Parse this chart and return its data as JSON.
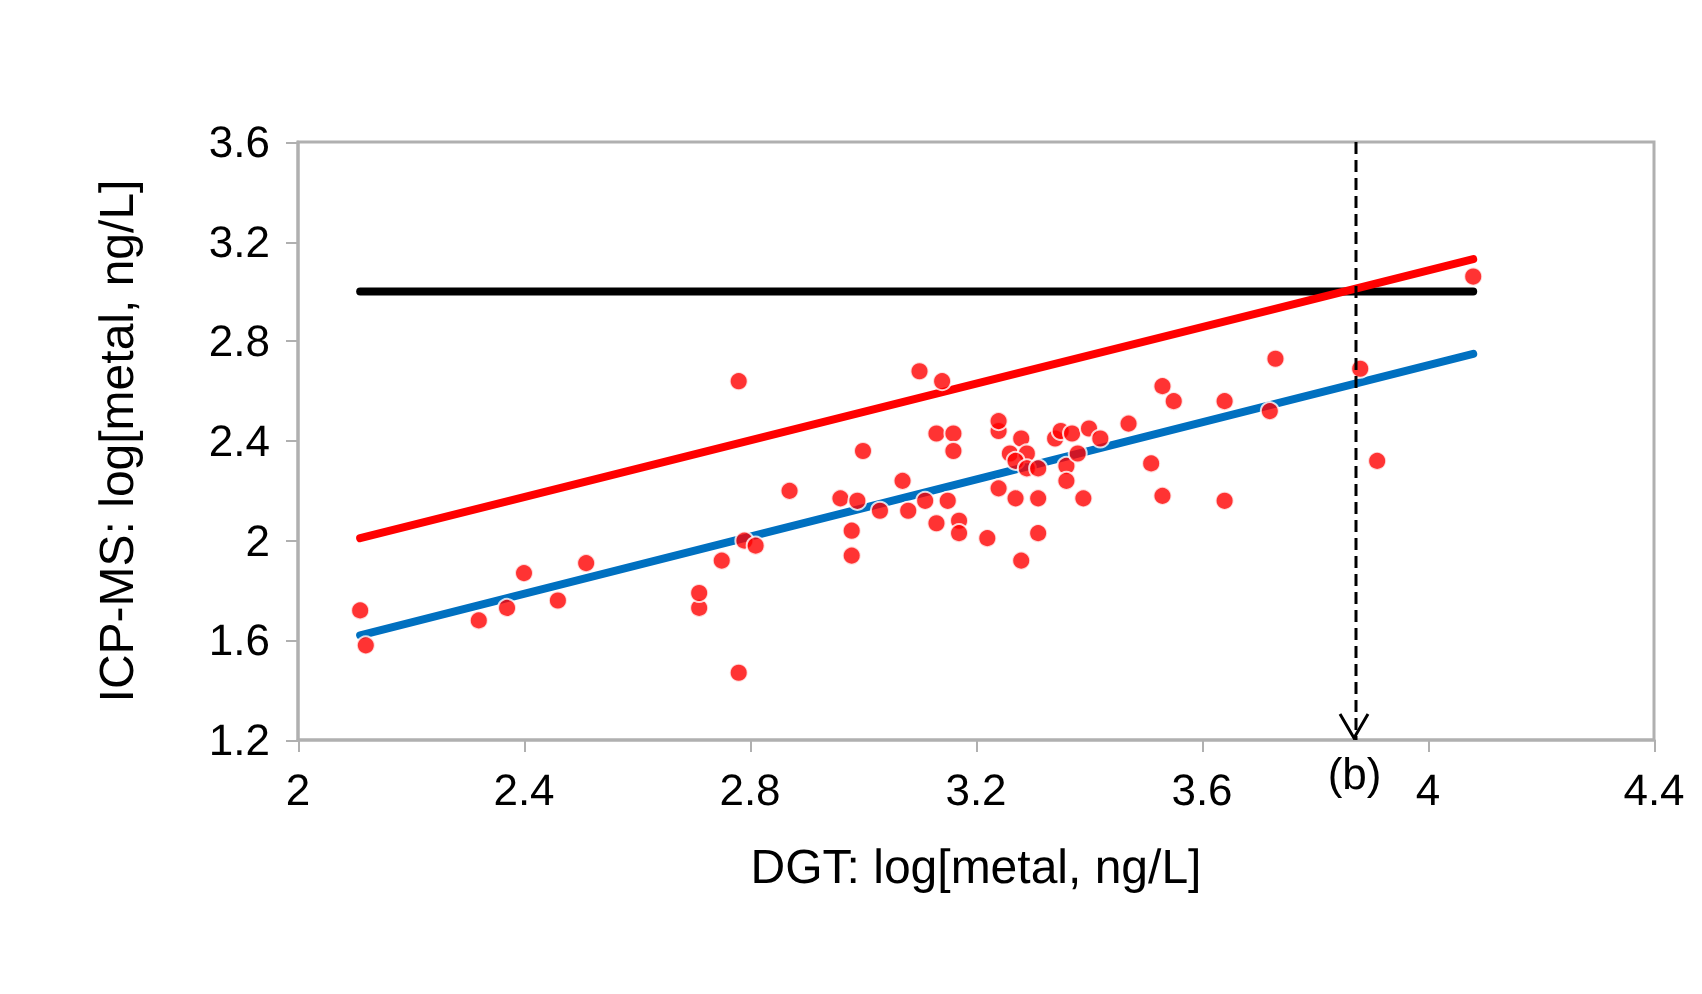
{
  "chart_data": {
    "type": "scatter",
    "xlabel": "DGT: log[metal, ng/L]",
    "ylabel": "ICP-MS: log[metal, ng/L]",
    "xlim": [
      2,
      4.4
    ],
    "xticks": [
      2,
      2.4,
      2.8,
      3.2,
      3.6,
      4,
      4.4
    ],
    "ylim": [
      1.2,
      3.6
    ],
    "yticks": [
      1.2,
      1.6,
      2,
      2.4,
      2.8,
      3.2,
      3.6
    ],
    "grid": false,
    "series": [
      {
        "type": "line",
        "color": "#000000",
        "x": [
          2.11,
          4.08
        ],
        "values": [
          3,
          3
        ]
      },
      {
        "type": "line",
        "color": "#ff0000",
        "x": [
          2.11,
          4.08
        ],
        "values": [
          2.01,
          3.13
        ]
      },
      {
        "type": "line",
        "color": "#0070c0",
        "x": [
          2.11,
          4.08
        ],
        "values": [
          1.62,
          2.75
        ]
      },
      {
        "color": "#ff0000",
        "marker": "circle",
        "x": [
          2.11,
          2.12,
          2.32,
          2.37,
          2.4,
          2.46,
          2.51,
          2.71,
          2.71,
          2.75,
          2.78,
          2.78,
          2.79,
          2.81,
          3.1,
          3.14,
          3.0,
          2.87,
          2.96,
          2.99,
          2.98,
          2.98,
          3.07,
          3.03,
          3.08,
          3.11,
          3.13,
          3.15,
          3.17,
          3.17,
          3.13,
          3.16,
          3.16,
          3.22,
          3.24,
          3.24,
          3.24,
          3.27,
          3.28,
          3.26,
          3.29,
          3.27,
          3.29,
          3.31,
          3.31,
          3.31,
          3.28,
          3.34,
          3.35,
          3.37,
          3.4,
          3.42,
          3.36,
          3.36,
          3.38,
          3.39,
          3.47,
          3.51,
          3.53,
          3.53,
          3.55,
          3.64,
          3.72,
          3.73,
          3.64,
          3.88,
          3.91,
          4.08
        ],
        "values": [
          1.72,
          1.58,
          1.68,
          1.73,
          1.87,
          1.76,
          1.91,
          1.73,
          1.79,
          1.92,
          2.64,
          1.47,
          2.0,
          1.98,
          2.68,
          2.64,
          2.36,
          2.2,
          2.17,
          2.16,
          2.04,
          1.94,
          2.24,
          2.12,
          2.12,
          2.16,
          2.07,
          2.16,
          2.08,
          2.03,
          2.43,
          2.43,
          2.36,
          2.01,
          2.44,
          2.48,
          2.21,
          2.17,
          2.41,
          2.35,
          2.35,
          2.32,
          2.29,
          2.29,
          2.17,
          2.03,
          1.92,
          2.41,
          2.44,
          2.43,
          2.45,
          2.41,
          2.3,
          2.24,
          2.35,
          2.17,
          2.47,
          2.31,
          2.18,
          2.62,
          2.56,
          2.56,
          2.52,
          2.73,
          2.16,
          2.69,
          2.32,
          3.06
        ]
      }
    ],
    "ref_lines": [
      {
        "axis": "x",
        "value": 3.87,
        "label": "(b)",
        "color": "#000000",
        "line_style": "dashed"
      }
    ]
  }
}
